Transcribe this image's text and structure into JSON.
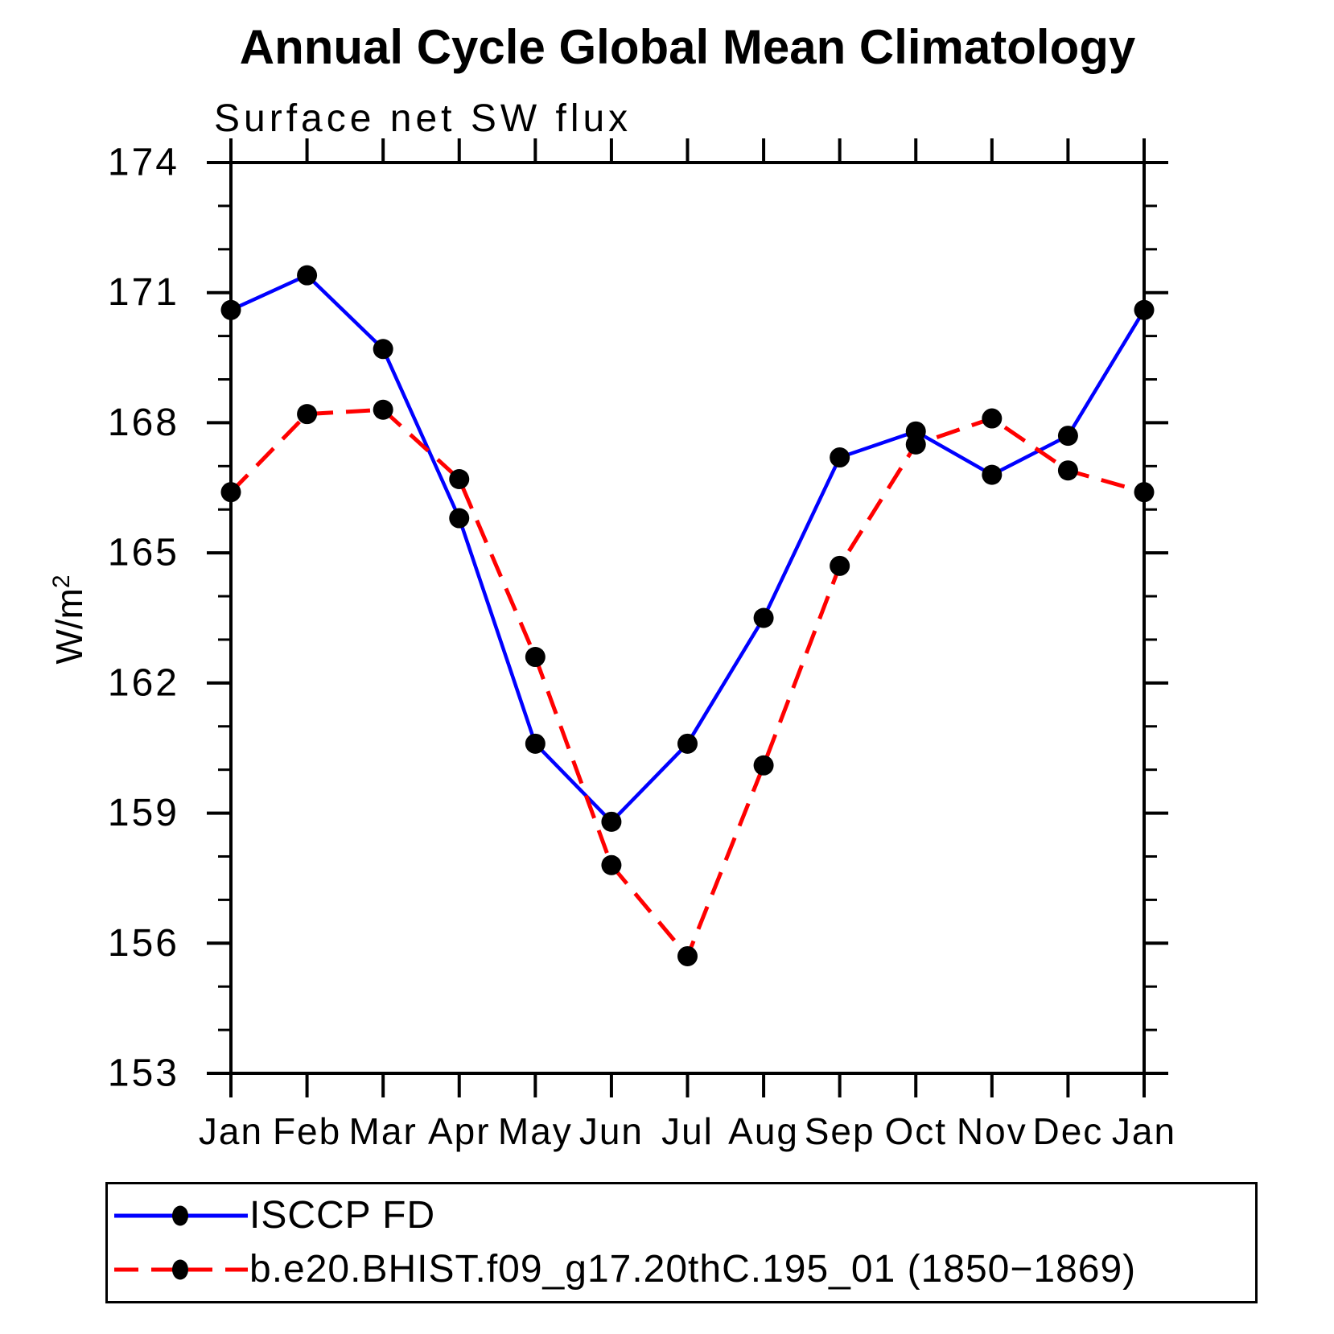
{
  "chart_data": {
    "type": "line",
    "title": "Annual Cycle Global Mean Climatology",
    "subtitle": "Surface net SW flux",
    "ylabel": "W/m²",
    "xlabel": "",
    "ylim": [
      153,
      174
    ],
    "yticks": [
      153,
      156,
      159,
      162,
      165,
      168,
      171,
      174
    ],
    "ytick_minor_step": 1,
    "grid": false,
    "legend_position": "bottom-left",
    "categories": [
      "Jan",
      "Feb",
      "Mar",
      "Apr",
      "May",
      "Jun",
      "Jul",
      "Aug",
      "Sep",
      "Oct",
      "Nov",
      "Dec",
      "Jan"
    ],
    "series": [
      {
        "name": "ISCCP FD",
        "color": "#0000ff",
        "line_style": "solid",
        "marker": "filled-black-circle",
        "values": [
          170.6,
          171.4,
          169.7,
          165.8,
          160.6,
          158.8,
          160.6,
          163.5,
          167.2,
          167.8,
          166.8,
          167.7,
          170.6
        ]
      },
      {
        "name": "b.e20.BHIST.f09_g17.20thC.195_01 (1850−1869)",
        "color": "#ff0000",
        "line_style": "dashed",
        "marker": "filled-black-circle",
        "values": [
          166.4,
          168.2,
          168.3,
          166.7,
          162.6,
          157.8,
          155.7,
          160.1,
          164.7,
          167.5,
          168.1,
          166.9,
          166.4
        ]
      }
    ]
  }
}
